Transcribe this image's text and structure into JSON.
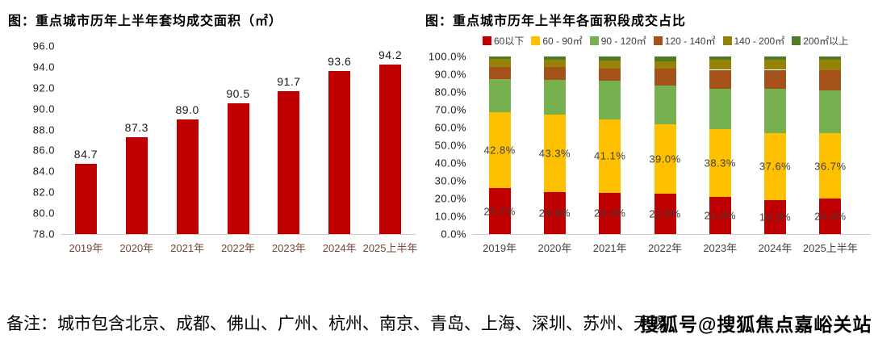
{
  "left_chart": {
    "title": "图：重点城市历年上半年套均成交面积（㎡）"
  },
  "right_chart": {
    "title": "图：重点城市历年上半年各面积段成交占比"
  },
  "note": "备注：城市包含北京、成都、佛山、广州、杭州、南京、青岛、上海、深圳、苏州、无锡",
  "watermark": "搜狐号@搜狐焦点嘉峪关站",
  "colors": {
    "bar_red": "#c00000",
    "yellow": "#ffc000",
    "green": "#77b14f",
    "brown": "#a5511a",
    "olive": "#968209",
    "dark_green": "#4f7a28",
    "axis_line": "#d0cdc8"
  },
  "chart_data": [
    {
      "type": "bar",
      "title": "图：重点城市历年上半年套均成交面积（㎡）",
      "categories": [
        "2019年",
        "2020年",
        "2021年",
        "2022年",
        "2023年",
        "2024年",
        "2025上半年"
      ],
      "values": [
        84.7,
        87.3,
        89.0,
        90.5,
        91.7,
        93.6,
        94.2
      ],
      "bar_color": "#c00000",
      "ylim": [
        78.0,
        96.0
      ],
      "ytick_step": 2.0,
      "tick_suffix": "",
      "grid": false,
      "legend_position": "none"
    },
    {
      "type": "bar",
      "stacked": true,
      "title": "图：重点城市历年上半年各面积段成交占比",
      "categories": [
        "2019年",
        "2020年",
        "2021年",
        "2022年",
        "2023年",
        "2024年",
        "2025上半年"
      ],
      "series": [
        {
          "name": "60以下",
          "color": "#c00000",
          "show_labels": true,
          "values": [
            25.7,
            23.8,
            23.4,
            22.8,
            21.0,
            19.3,
            20.0
          ]
        },
        {
          "name": "60 - 90㎡",
          "color": "#ffc000",
          "show_labels": true,
          "values": [
            42.8,
            43.3,
            41.1,
            39.0,
            38.3,
            37.6,
            36.7
          ]
        },
        {
          "name": "90 - 120㎡",
          "color": "#77b14f",
          "show_labels": false,
          "values": [
            18.8,
            19.9,
            21.7,
            21.7,
            22.4,
            24.8,
            24.2
          ]
        },
        {
          "name": "120 - 140㎡",
          "color": "#a5511a",
          "show_labels": false,
          "values": [
            6.8,
            7.1,
            7.2,
            9.9,
            10.8,
            10.8,
            11.3
          ]
        },
        {
          "name": "140 - 200㎡",
          "color": "#968209",
          "show_labels": false,
          "values": [
            4.4,
            4.2,
            4.5,
            4.1,
            5.7,
            5.7,
            6.0
          ]
        },
        {
          "name": "200㎡以上",
          "color": "#4f7a28",
          "show_labels": false,
          "values": [
            1.5,
            1.7,
            2.1,
            2.5,
            1.8,
            1.8,
            1.8
          ]
        }
      ],
      "ylim": [
        0.0,
        100.0
      ],
      "ytick_step": 10.0,
      "tick_suffix": "%",
      "grid": false,
      "legend_position": "top"
    }
  ]
}
